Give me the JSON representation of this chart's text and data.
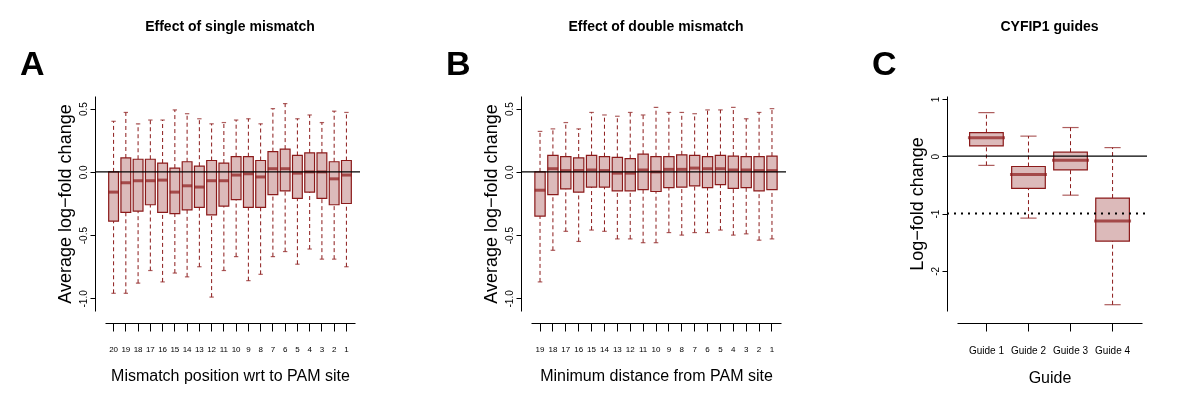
{
  "chart_data": [
    {
      "type": "box",
      "title": "Effect of single mismatch",
      "xlabel": "Mismatch position wrt to PAM site",
      "ylabel": "Average log−fold change",
      "annotations": [
        "A"
      ],
      "categories": [
        "20",
        "19",
        "18",
        "17",
        "16",
        "15",
        "14",
        "13",
        "12",
        "11",
        "10",
        "9",
        "8",
        "7",
        "6",
        "5",
        "4",
        "3",
        "2",
        "1"
      ],
      "series": [
        {
          "color": "#8b1a1a",
          "boxes": [
            {
              "low": -0.96,
              "q1": -0.39,
              "median": -0.16,
              "q3": 0.0,
              "high": 0.4
            },
            {
              "low": -0.96,
              "q1": -0.32,
              "median": -0.085,
              "q3": 0.11,
              "high": 0.47
            },
            {
              "low": -0.88,
              "q1": -0.31,
              "median": -0.07,
              "q3": 0.1,
              "high": 0.38
            },
            {
              "low": -0.78,
              "q1": -0.26,
              "median": -0.07,
              "q3": 0.1,
              "high": 0.41
            },
            {
              "low": -0.87,
              "q1": -0.32,
              "median": -0.065,
              "q3": 0.07,
              "high": 0.41
            },
            {
              "low": -0.8,
              "q1": -0.33,
              "median": -0.16,
              "q3": 0.03,
              "high": 0.49
            },
            {
              "low": -0.83,
              "q1": -0.3,
              "median": -0.11,
              "q3": 0.08,
              "high": 0.46
            },
            {
              "low": -0.75,
              "q1": -0.28,
              "median": -0.12,
              "q3": 0.045,
              "high": 0.42
            },
            {
              "low": -0.99,
              "q1": -0.34,
              "median": -0.07,
              "q3": 0.09,
              "high": 0.38
            },
            {
              "low": -0.78,
              "q1": -0.27,
              "median": -0.07,
              "q3": 0.07,
              "high": 0.39
            },
            {
              "low": -0.67,
              "q1": -0.22,
              "median": -0.025,
              "q3": 0.12,
              "high": 0.41
            },
            {
              "low": -0.86,
              "q1": -0.28,
              "median": -0.015,
              "q3": 0.12,
              "high": 0.42
            },
            {
              "low": -0.81,
              "q1": -0.28,
              "median": -0.04,
              "q3": 0.09,
              "high": 0.38
            },
            {
              "low": -0.67,
              "q1": -0.18,
              "median": 0.025,
              "q3": 0.16,
              "high": 0.5
            },
            {
              "low": -0.63,
              "q1": -0.15,
              "median": 0.025,
              "q3": 0.18,
              "high": 0.54
            },
            {
              "low": -0.73,
              "q1": -0.21,
              "median": -0.01,
              "q3": 0.13,
              "high": 0.42
            },
            {
              "low": -0.61,
              "q1": -0.16,
              "median": 0.0,
              "q3": 0.15,
              "high": 0.45
            },
            {
              "low": -0.69,
              "q1": -0.21,
              "median": 0.0,
              "q3": 0.15,
              "high": 0.39
            },
            {
              "low": -0.69,
              "q1": -0.26,
              "median": -0.055,
              "q3": 0.08,
              "high": 0.48
            },
            {
              "low": -0.75,
              "q1": -0.25,
              "median": -0.025,
              "q3": 0.09,
              "high": 0.47
            }
          ]
        }
      ],
      "ylim": [
        -1.1,
        0.6
      ],
      "yticks": [
        {
          "value": -1,
          "label": "-1.0"
        },
        {
          "value": -0.5,
          "label": "-0.5"
        },
        {
          "value": 0,
          "label": "0.0"
        },
        {
          "value": 0.5,
          "label": "0.5"
        }
      ],
      "ref_lines": [
        {
          "axis": "y",
          "value": 0,
          "label": null,
          "color": "#000000",
          "line_style": "solid"
        }
      ],
      "grid": false
    },
    {
      "type": "box",
      "title": "Effect of double mismatch",
      "xlabel": "Minimum distance from PAM site",
      "ylabel": "Average log−fold change",
      "annotations": [
        "B"
      ],
      "categories": [
        "19",
        "18",
        "17",
        "16",
        "15",
        "14",
        "13",
        "12",
        "11",
        "10",
        "9",
        "8",
        "7",
        "6",
        "5",
        "4",
        "3",
        "2",
        "1"
      ],
      "series": [
        {
          "color": "#8b1a1a",
          "boxes": [
            {
              "low": -0.87,
              "q1": -0.35,
              "median": -0.145,
              "q3": 0.0,
              "high": 0.32
            },
            {
              "low": -0.62,
              "q1": -0.18,
              "median": 0.025,
              "q3": 0.13,
              "high": 0.34
            },
            {
              "low": -0.47,
              "q1": -0.135,
              "median": 0.01,
              "q3": 0.12,
              "high": 0.39
            },
            {
              "low": -0.55,
              "q1": -0.16,
              "median": 0.01,
              "q3": 0.11,
              "high": 0.34
            },
            {
              "low": -0.46,
              "q1": -0.12,
              "median": 0.015,
              "q3": 0.13,
              "high": 0.47
            },
            {
              "low": -0.47,
              "q1": -0.12,
              "median": 0.01,
              "q3": 0.12,
              "high": 0.45
            },
            {
              "low": -0.53,
              "q1": -0.15,
              "median": -0.01,
              "q3": 0.115,
              "high": 0.44
            },
            {
              "low": -0.53,
              "q1": -0.15,
              "median": -0.01,
              "q3": 0.105,
              "high": 0.47
            },
            {
              "low": -0.56,
              "q1": -0.14,
              "median": 0.015,
              "q3": 0.14,
              "high": 0.45
            },
            {
              "low": -0.56,
              "q1": -0.155,
              "median": 0.0,
              "q3": 0.12,
              "high": 0.51
            },
            {
              "low": -0.48,
              "q1": -0.125,
              "median": 0.02,
              "q3": 0.12,
              "high": 0.47
            },
            {
              "low": -0.5,
              "q1": -0.12,
              "median": 0.02,
              "q3": 0.135,
              "high": 0.47
            },
            {
              "low": -0.48,
              "q1": -0.11,
              "median": 0.03,
              "q3": 0.13,
              "high": 0.46
            },
            {
              "low": -0.48,
              "q1": -0.125,
              "median": 0.025,
              "q3": 0.12,
              "high": 0.49
            },
            {
              "low": -0.46,
              "q1": -0.1,
              "median": 0.025,
              "q3": 0.13,
              "high": 0.49
            },
            {
              "low": -0.5,
              "q1": -0.13,
              "median": 0.015,
              "q3": 0.125,
              "high": 0.51
            },
            {
              "low": -0.49,
              "q1": -0.125,
              "median": 0.015,
              "q3": 0.12,
              "high": 0.42
            },
            {
              "low": -0.54,
              "q1": -0.15,
              "median": 0.01,
              "q3": 0.12,
              "high": 0.47
            },
            {
              "low": -0.53,
              "q1": -0.14,
              "median": 0.01,
              "q3": 0.125,
              "high": 0.5
            }
          ]
        }
      ],
      "ylim": [
        -1.1,
        0.6
      ],
      "yticks": [
        {
          "value": -1,
          "label": "-1.0"
        },
        {
          "value": -0.5,
          "label": "-0.5"
        },
        {
          "value": 0,
          "label": "0.0"
        },
        {
          "value": 0.5,
          "label": "0.5"
        }
      ],
      "ref_lines": [
        {
          "axis": "y",
          "value": 0,
          "label": null,
          "color": "#000000",
          "line_style": "solid"
        }
      ],
      "grid": false
    },
    {
      "type": "box",
      "title": "CYFIP1 guides",
      "xlabel": "Guide",
      "ylabel": "Log−fold change",
      "annotations": [
        "C"
      ],
      "categories": [
        "Guide 1",
        "Guide 2",
        "Guide 3",
        "Guide 4"
      ],
      "series": [
        {
          "color": "#8b1a1a",
          "boxes": [
            {
              "low": -0.16,
              "q1": 0.18,
              "median": 0.32,
              "q3": 0.41,
              "high": 0.76
            },
            {
              "low": -1.08,
              "q1": -0.56,
              "median": -0.32,
              "q3": -0.18,
              "high": 0.35
            },
            {
              "low": -0.68,
              "q1": -0.24,
              "median": -0.07,
              "q3": 0.07,
              "high": 0.5
            },
            {
              "low": -2.59,
              "q1": -1.48,
              "median": -1.13,
              "q3": -0.73,
              "high": 0.15
            }
          ]
        }
      ],
      "ylim": [
        -2.7,
        1.05
      ],
      "yticks": [
        -2,
        -1,
        0,
        1
      ],
      "ref_lines": [
        {
          "axis": "y",
          "value": 0,
          "label": null,
          "color": "#000000",
          "line_style": "solid"
        },
        {
          "axis": "y",
          "value": -1,
          "label": null,
          "color": "#000000",
          "line_style": "dotted"
        }
      ],
      "grid": false
    }
  ]
}
